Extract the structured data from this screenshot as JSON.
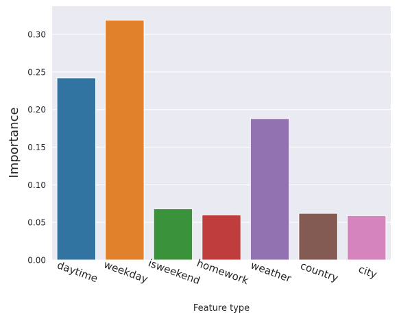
{
  "chart_data": {
    "type": "bar",
    "title": "",
    "xlabel": "Feature type",
    "ylabel": "Importance",
    "categories": [
      "daytime",
      "weekday",
      "isweekend",
      "homework",
      "weather",
      "country",
      "city"
    ],
    "values": [
      0.242,
      0.319,
      0.068,
      0.06,
      0.188,
      0.062,
      0.059
    ],
    "colors": [
      "#3274a1",
      "#e1812c",
      "#3a923a",
      "#c03d3e",
      "#9372b2",
      "#845b53",
      "#d684bd"
    ],
    "ylim": [
      0,
      0.3375
    ],
    "yticks": [
      0.0,
      0.05,
      0.1,
      0.15,
      0.2,
      0.25,
      0.3
    ],
    "ytick_labels": [
      "0.00",
      "0.05",
      "0.10",
      "0.15",
      "0.20",
      "0.25",
      "0.30"
    ],
    "xtick_rotation_deg": 20,
    "grid": true,
    "background": "#eaeaf2",
    "grid_color": "#ffffff",
    "legend": "none"
  }
}
